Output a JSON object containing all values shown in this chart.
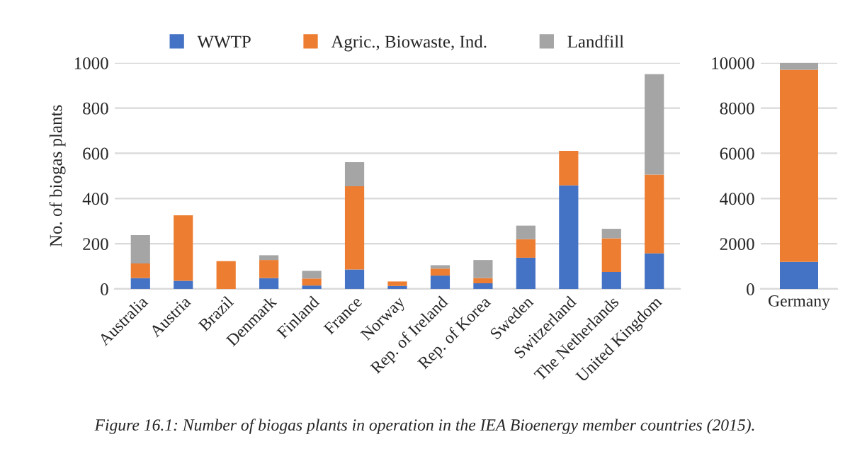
{
  "chart_data": [
    {
      "type": "bar",
      "stacked": true,
      "ylabel": "No. of biogas plants",
      "categories": [
        "Australia",
        "Austria",
        "Brazil",
        "Denmark",
        "Finland",
        "France",
        "Norway",
        "Rep. of Ireland",
        "Rep. of Korea",
        "Sweden",
        "Switzerland",
        "The Netherlands",
        "United Kingdom"
      ],
      "series": [
        {
          "name": "WWTP",
          "color": "#4472c4",
          "values": [
            48,
            36,
            0,
            48,
            15,
            86,
            13,
            59,
            25,
            138,
            458,
            75,
            157
          ]
        },
        {
          "name": "Agric., Biowaste, Ind.",
          "color": "#ed7d31",
          "values": [
            65,
            290,
            123,
            80,
            31,
            368,
            20,
            31,
            23,
            82,
            153,
            149,
            349
          ]
        },
        {
          "name": "Landfill",
          "color": "#a5a5a5",
          "values": [
            125,
            0,
            0,
            21,
            34,
            107,
            0,
            15,
            80,
            60,
            0,
            42,
            444
          ]
        }
      ],
      "ylim": [
        0,
        1000
      ],
      "yticks": [
        0,
        200,
        400,
        600,
        800,
        1000
      ],
      "grid": "y",
      "legend": "top",
      "annotations": [
        "Figure 16.1: Number of biogas plants in operation in the IEA Bioenergy member countries (2015)."
      ]
    },
    {
      "type": "bar",
      "stacked": true,
      "categories": [
        "Germany"
      ],
      "series": [
        {
          "color": "#4472c4",
          "values": [
            1200
          ]
        },
        {
          "color": "#ed7d31",
          "values": [
            8500
          ]
        },
        {
          "color": "#a5a5a5",
          "values": [
            300
          ]
        }
      ],
      "ylim": [
        0,
        10000
      ],
      "yticks": [
        0,
        2000,
        4000,
        6000,
        8000,
        10000
      ],
      "grid": "y"
    }
  ]
}
